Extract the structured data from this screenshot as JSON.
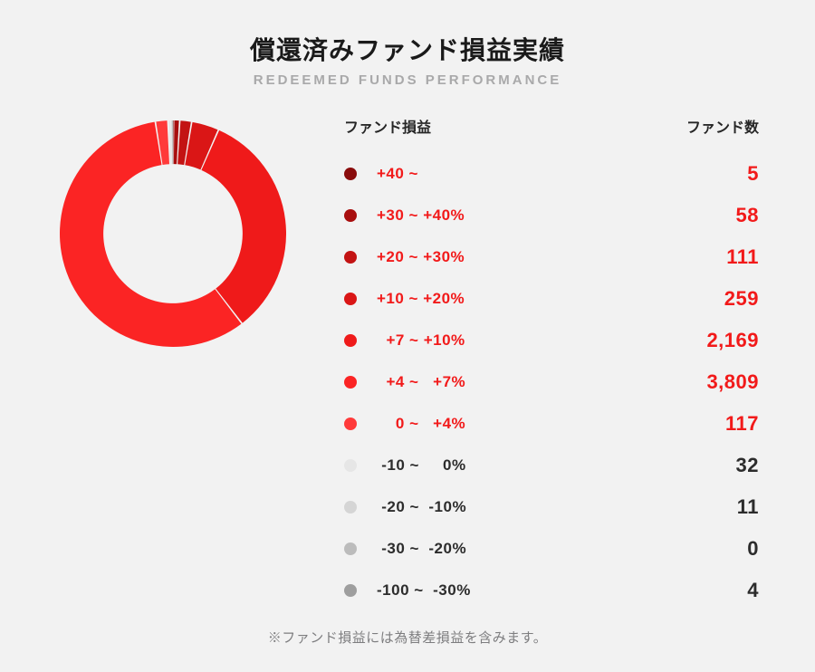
{
  "title_jp": "償還済みファンド損益実績",
  "title_en": "REDEEMED FUNDS PERFORMANCE",
  "legend_header_left": "ファンド損益",
  "legend_header_right": "ファンド数",
  "footnote": "※ファンド損益には為替差損益を含みます。",
  "positive_text_color": "#f21a1a",
  "neutral_text_color": "#2c2c2c",
  "background_color": "#f2f2f2",
  "chart": {
    "type": "donut",
    "size": 250,
    "inner_radius_ratio": 0.615,
    "gap_deg": 0.8,
    "background_color": "#f2f2f2",
    "start_angle_deg": -90
  },
  "rows": [
    {
      "label": "+40 ~",
      "count": "5",
      "value": 5,
      "color": "#8a0c0c",
      "positive": true
    },
    {
      "label": "+30 ~ +40%",
      "count": "58",
      "value": 58,
      "color": "#a80e0e",
      "positive": true
    },
    {
      "label": "+20 ~ +30%",
      "count": "111",
      "value": 111,
      "color": "#c31313",
      "positive": true
    },
    {
      "label": "+10 ~ +20%",
      "count": "259",
      "value": 259,
      "color": "#da1616",
      "positive": true
    },
    {
      "label": "  +7 ~ +10%",
      "count": "2,169",
      "value": 2169,
      "color": "#ef1a1a",
      "positive": true
    },
    {
      "label": "  +4 ~   +7%",
      "count": "3,809",
      "value": 3809,
      "color": "#fb2424",
      "positive": true
    },
    {
      "label": "    0 ~   +4%",
      "count": "117",
      "value": 117,
      "color": "#ff3a3a",
      "positive": true
    },
    {
      "label": " -10 ~     0%",
      "count": "32",
      "value": 32,
      "color": "#e6e6e6",
      "positive": false
    },
    {
      "label": " -20 ~  -10%",
      "count": "11",
      "value": 11,
      "color": "#d5d5d5",
      "positive": false
    },
    {
      "label": " -30 ~  -20%",
      "count": "0",
      "value": 0,
      "color": "#bcbcbc",
      "positive": false
    },
    {
      "label": "-100 ~  -30%",
      "count": "4",
      "value": 4,
      "color": "#9e9e9e",
      "positive": false
    }
  ]
}
